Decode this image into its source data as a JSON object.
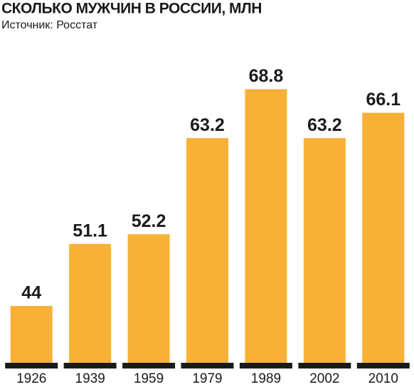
{
  "chart_data": {
    "type": "bar",
    "title": "СКОЛЬКО МУЖЧИН В РОССИИ, МЛН",
    "subtitle": "Источник: Росстат",
    "categories": [
      "1926",
      "1939",
      "1959",
      "1979",
      "1989",
      "2002",
      "2010"
    ],
    "values": [
      44,
      51.1,
      52.2,
      63.2,
      68.8,
      63.2,
      66.1
    ],
    "color": "#f7b137",
    "ylim": [
      37.5,
      72
    ]
  }
}
